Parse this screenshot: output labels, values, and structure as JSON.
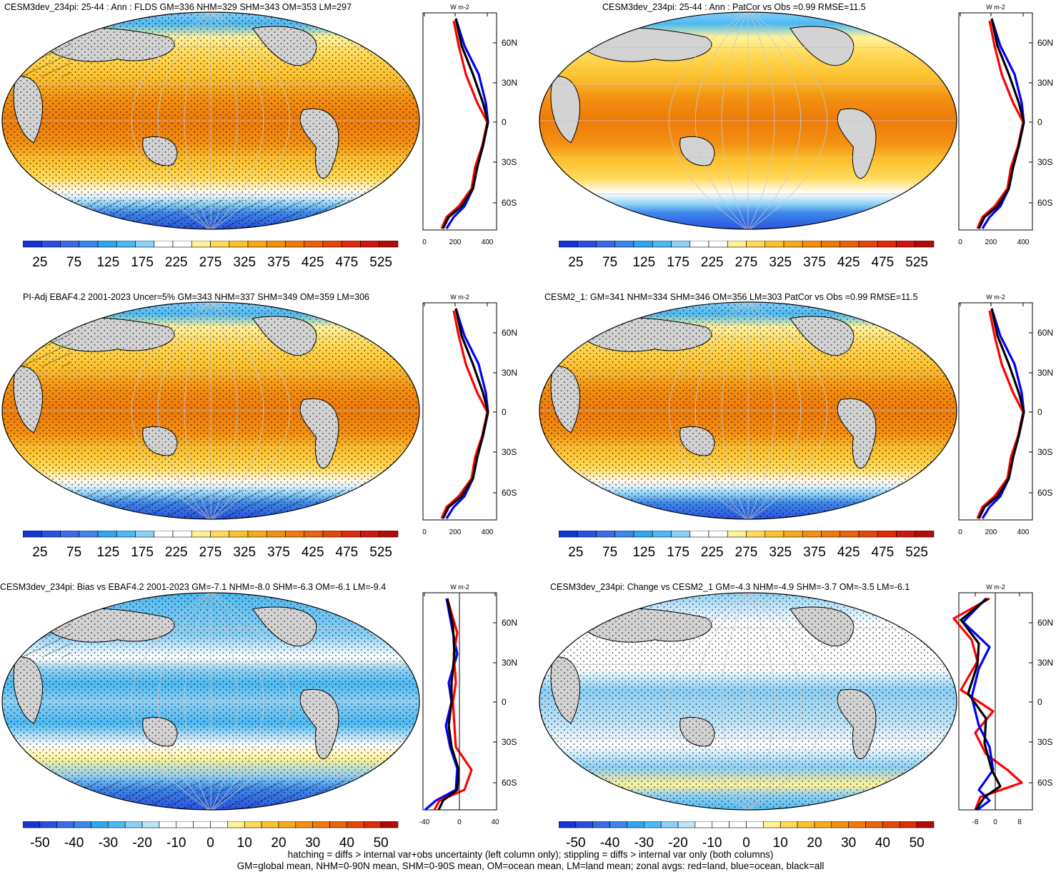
{
  "panels": [
    {
      "title": "CESM3dev_234pi: 25-44 : Ann : FLDS GM=336 NHM=329 SHM=343 OM=353 LM=297",
      "kind": "abs",
      "hatch": true,
      "stipple": true,
      "cbar_labels": [
        "25",
        "75",
        "125",
        "175",
        "225",
        "275",
        "325",
        "375",
        "425",
        "475",
        "525"
      ],
      "profile": {
        "units": "W m-2",
        "xticks": [
          "0",
          "200",
          "400"
        ],
        "lat_labels": [
          "60N",
          "30N",
          "0",
          "30S",
          "60S"
        ],
        "style": "abs"
      }
    },
    {
      "title": "CESM3dev_234pi: 25-44 : Ann : PatCor vs Obs =0.99 RMSE=11.5",
      "kind": "abs",
      "hatch": false,
      "stipple": false,
      "cbar_labels": [
        "25",
        "75",
        "125",
        "175",
        "225",
        "275",
        "325",
        "375",
        "425",
        "475",
        "525"
      ],
      "profile": {
        "units": "W m-2",
        "xticks": [
          "0",
          "200",
          "400"
        ],
        "lat_labels": [
          "60N",
          "30N",
          "0",
          "30S",
          "60S"
        ],
        "style": "abs"
      }
    },
    {
      "title": "PI-Adj EBAF4.2 2001-2023 Uncer=5% GM=343 NHM=337 SHM=349 OM=359 LM=306",
      "kind": "abs",
      "hatch": true,
      "stipple": true,
      "cbar_labels": [
        "25",
        "75",
        "125",
        "175",
        "225",
        "275",
        "325",
        "375",
        "425",
        "475",
        "525"
      ],
      "profile": {
        "units": "W m-2",
        "xticks": [
          "0",
          "200",
          "400"
        ],
        "lat_labels": [
          "60N",
          "30N",
          "0",
          "30S",
          "60S"
        ],
        "style": "abs"
      }
    },
    {
      "title": "CESM2_1: GM=341 NHM=334 SHM=346 OM=356 LM=303 PatCor vs Obs =0.99 RMSE=11.5",
      "kind": "abs",
      "hatch": false,
      "stipple": true,
      "cbar_labels": [
        "25",
        "75",
        "125",
        "175",
        "225",
        "275",
        "325",
        "375",
        "425",
        "475",
        "525"
      ],
      "profile": {
        "units": "W m-2",
        "xticks": [
          "0",
          "200",
          "400"
        ],
        "lat_labels": [
          "60N",
          "30N",
          "0",
          "30S",
          "60S"
        ],
        "style": "abs"
      }
    },
    {
      "title": "CESM3dev_234pi: Bias vs EBAF4.2 2001-2023 GM=-7.1 NHM=-8.0 SHM=-6.3 OM=-6.1 LM=-9.4",
      "kind": "bias",
      "hatch": true,
      "stipple": true,
      "cbar_labels": [
        "-50",
        "-40",
        "-30",
        "-20",
        "-10",
        "0",
        "10",
        "20",
        "30",
        "40",
        "50"
      ],
      "profile": {
        "units": "W m-2",
        "xticks": [
          "-40",
          "0",
          "40"
        ],
        "lat_labels": [
          "60N",
          "30N",
          "0",
          "30S",
          "60S"
        ],
        "style": "bias"
      }
    },
    {
      "title": "CESM3dev_234pi: Change vs CESM2_1 GM=-4.3 NHM=-4.9 SHM=-3.7 OM=-3.5 LM=-6.1",
      "kind": "change",
      "hatch": false,
      "stipple": true,
      "cbar_labels": [
        "-50",
        "-40",
        "-30",
        "-20",
        "-10",
        "0",
        "10",
        "20",
        "30",
        "40",
        "50"
      ],
      "profile": {
        "units": "W m-2",
        "xticks": [
          "-8",
          "0",
          "8"
        ],
        "lat_labels": [
          "60N",
          "30N",
          "0",
          "30S",
          "60S"
        ],
        "style": "change"
      }
    }
  ],
  "colors": {
    "abs_palette": [
      "#1535d6",
      "#2a4fe0",
      "#3a6ae6",
      "#3d86ea",
      "#2fa6ee",
      "#4cb9f2",
      "#8cd0f5",
      "#ffffff",
      "#ffffff",
      "#fff29a",
      "#ffd957",
      "#fcc12e",
      "#f7a91a",
      "#f39012",
      "#ee7a0a",
      "#e8630a",
      "#e3480b",
      "#df2a0c",
      "#cf150d",
      "#b30a0a"
    ],
    "diff_palette": [
      "#1535d6",
      "#2a4fe0",
      "#3a6ae6",
      "#3d86ea",
      "#2fa6ee",
      "#4cb9f2",
      "#8cd0f5",
      "#bfe3f7",
      "#ffffff",
      "#ffffff",
      "#ffffff",
      "#ffffff",
      "#fff29a",
      "#ffd957",
      "#fcc12e",
      "#f7a91a",
      "#f39012",
      "#ee7a0a",
      "#e8630a",
      "#e3480b",
      "#df2a0c",
      "#b30a0a"
    ],
    "land": "#d3d3d3",
    "land_line": "red",
    "ocean_line": "blue",
    "all_line": "black"
  },
  "footer": {
    "line1": "hatching = diffs > internal var+obs uncertainty (left column only); stippling = diffs > internal var only (both columns)",
    "line2": "GM=global mean, NHM=0-90N mean, SHM=0-90S mean, OM=ocean mean, LM=land mean; zonal avgs: red=land, blue=ocean, black=all"
  }
}
